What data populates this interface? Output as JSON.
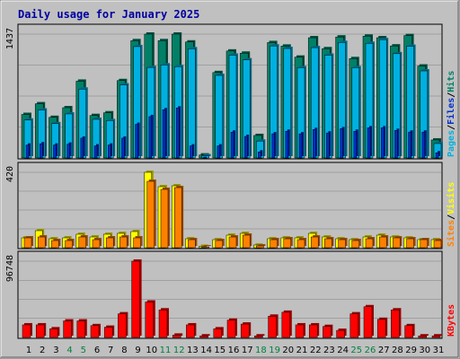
{
  "chart_data": {
    "type": "bar",
    "title": "Daily usage for January 2025",
    "x": [
      "1",
      "2",
      "3",
      "4",
      "5",
      "6",
      "7",
      "8",
      "9",
      "10",
      "11",
      "12",
      "13",
      "14",
      "15",
      "16",
      "17",
      "18",
      "19",
      "20",
      "21",
      "22",
      "23",
      "24",
      "25",
      "26",
      "27",
      "28",
      "29",
      "30",
      "31"
    ],
    "weekend_days": [
      "4",
      "5",
      "11",
      "12",
      "18",
      "19",
      "25",
      "26"
    ],
    "panels": [
      {
        "name": "top",
        "ymax_label": "1437",
        "ymax": 1437,
        "legend": [
          "Pages",
          "/",
          "Files",
          "/",
          "Hits"
        ],
        "series": [
          {
            "name": "Hits",
            "values": [
              505,
              629,
              471,
              583,
              891,
              493,
              524,
              898,
              1361,
              1437,
              1361,
              1437,
              1346,
              35,
              991,
              1241,
              1216,
              261,
              1339,
              1298,
              1170,
              1395,
              1268,
              1404,
              1153,
              1414,
              1395,
              1300,
              1420,
              1067,
              209
            ]
          },
          {
            "name": "Files",
            "values": [
              440,
              557,
              398,
              511,
              799,
              448,
              434,
              848,
              1292,
              1050,
              1080,
              1060,
              1267,
              25,
              958,
              1193,
              1139,
              196,
              1300,
              1270,
              1048,
              1280,
              1193,
              1340,
              1048,
              1330,
              1373,
              1210,
              1296,
              1010,
              167
            ]
          },
          {
            "name": "Pages",
            "values": [
              150,
              165,
              150,
              160,
              230,
              140,
              150,
              230,
              390,
              480,
              560,
              580,
              140,
              8,
              140,
              300,
              250,
              70,
              280,
              310,
              280,
              330,
              290,
              340,
              310,
              350,
              350,
              320,
              300,
              300,
              60
            ]
          }
        ]
      },
      {
        "name": "middle",
        "ymax_label": "420",
        "ymax": 420,
        "legend": [
          "Sites",
          "/",
          "Visits"
        ],
        "series": [
          {
            "name": "Visits",
            "values": [
              55,
              95,
              50,
              55,
              75,
              60,
              75,
              80,
              90,
              420,
              340,
              345,
              50,
              8,
              45,
              70,
              80,
              15,
              50,
              55,
              55,
              80,
              60,
              50,
              45,
              60,
              70,
              60,
              55,
              45,
              45
            ]
          },
          {
            "name": "Sites",
            "values": [
              55,
              60,
              40,
              40,
              60,
              45,
              55,
              60,
              55,
              370,
              325,
              335,
              45,
              5,
              40,
              60,
              70,
              10,
              45,
              50,
              45,
              60,
              50,
              45,
              40,
              50,
              60,
              55,
              50,
              45,
              40
            ]
          }
        ]
      },
      {
        "name": "bottom",
        "ymax_label": "96748",
        "ymax": 96748,
        "legend": [
          "KBytes"
        ],
        "series": [
          {
            "name": "KBytes",
            "values": [
              16000,
              16000,
              11000,
              21000,
              21000,
              15000,
              13000,
              30000,
              96748,
              45000,
              35000,
              3000,
              16000,
              2000,
              11000,
              22000,
              17000,
              2000,
              27000,
              32000,
              16000,
              16000,
              14000,
              9000,
              30000,
              39000,
              23000,
              35000,
              15000,
              2000,
              2000
            ]
          }
        ]
      }
    ],
    "colors": {
      "hits": "#008066",
      "files": "#00b0e0",
      "pages": "#0030cc",
      "visits": "#ffff00",
      "sites": "#ff8000",
      "kbytes": "#ff0000",
      "title": "#0000a0",
      "weekend_label": "#008040",
      "weekday_label": "#000000",
      "plot_bg": "#c0c0c0",
      "frame_bg": "#c0c0c0"
    }
  }
}
